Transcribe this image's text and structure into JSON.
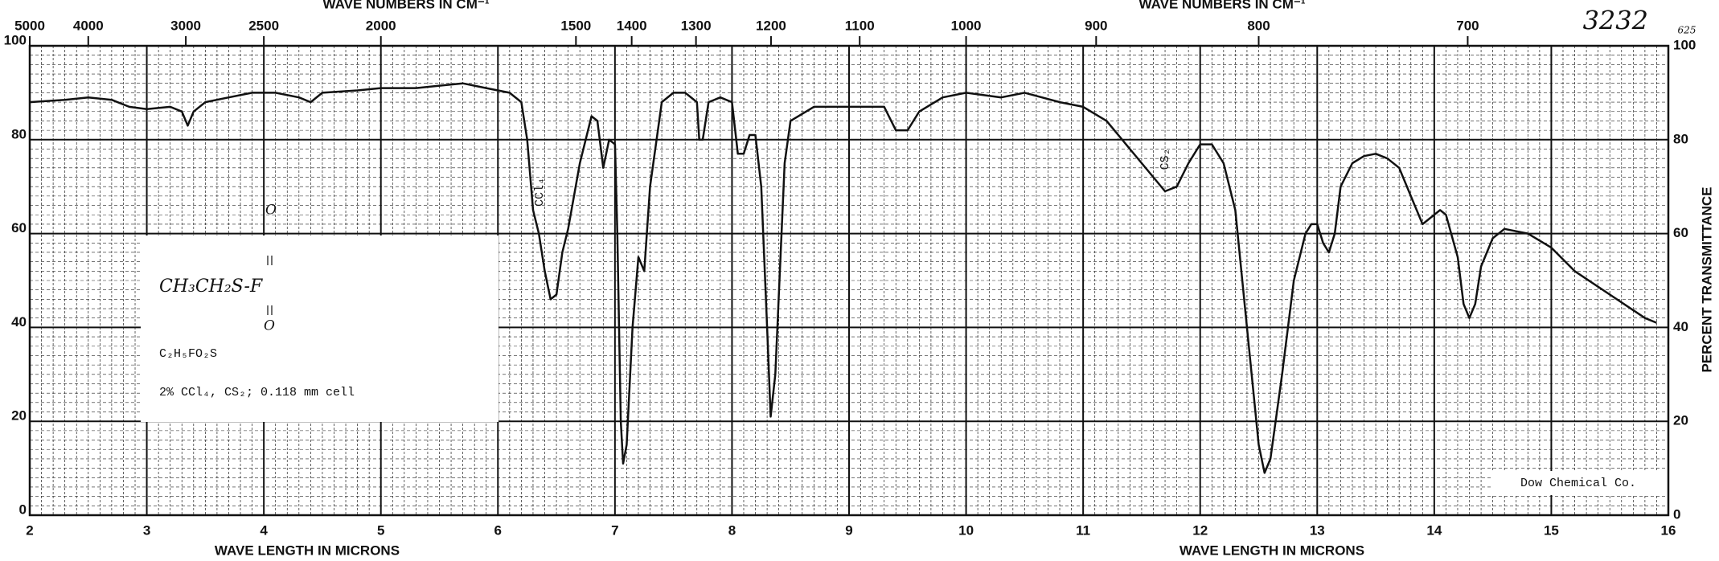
{
  "chart_data": {
    "type": "line",
    "x_label": "WAVE LENGTH IN MICRONS",
    "x2_label": "WAVE NUMBERS IN CM⁻¹",
    "y_label": "PERCENT TRANSMITTANCE",
    "catalog_number": "3232",
    "sub_number": "625",
    "source": "Dow Chemical Co.",
    "annotations": [
      "CCl₄",
      "CS₂"
    ],
    "sample": {
      "formula": "CH₃CH₂S-F",
      "oxygen": "O",
      "empirical": "C₂H₅FO₂S",
      "conditions": "2% CCl₄, CS₂; 0.118 mm cell"
    },
    "color": "#111111",
    "grid": true,
    "xlim": [
      2,
      16
    ],
    "xticks": [
      2,
      3,
      4,
      5,
      6,
      7,
      8,
      9,
      10,
      11,
      12,
      13,
      14,
      15,
      16
    ],
    "x2ticks": [
      5000,
      4000,
      3000,
      2500,
      2000,
      1500,
      1400,
      1300,
      1200,
      1100,
      1000,
      900,
      800,
      700
    ],
    "ylim": [
      0,
      100
    ],
    "yticks": [
      0,
      20,
      40,
      60,
      80,
      100
    ],
    "x": [
      2.0,
      2.3,
      2.5,
      2.7,
      2.85,
      3.0,
      3.2,
      3.3,
      3.35,
      3.4,
      3.5,
      3.7,
      3.9,
      4.1,
      4.3,
      4.4,
      4.5,
      4.8,
      5.0,
      5.3,
      5.5,
      5.7,
      5.9,
      6.1,
      6.2,
      6.25,
      6.3,
      6.35,
      6.4,
      6.45,
      6.5,
      6.55,
      6.6,
      6.7,
      6.8,
      6.85,
      6.9,
      6.95,
      7.0,
      7.02,
      7.05,
      7.07,
      7.1,
      7.15,
      7.2,
      7.25,
      7.3,
      7.4,
      7.5,
      7.6,
      7.7,
      7.72,
      7.75,
      7.8,
      7.9,
      8.0,
      8.05,
      8.1,
      8.15,
      8.2,
      8.25,
      8.3,
      8.33,
      8.37,
      8.45,
      8.5,
      8.7,
      9.0,
      9.3,
      9.4,
      9.5,
      9.6,
      9.8,
      10.0,
      10.3,
      10.5,
      10.8,
      11.0,
      11.2,
      11.4,
      11.6,
      11.7,
      11.8,
      11.9,
      12.0,
      12.1,
      12.2,
      12.3,
      12.4,
      12.5,
      12.55,
      12.6,
      12.7,
      12.8,
      12.9,
      12.95,
      13.0,
      13.05,
      13.1,
      13.15,
      13.2,
      13.3,
      13.4,
      13.5,
      13.6,
      13.7,
      13.8,
      13.9,
      14.0,
      14.05,
      14.1,
      14.2,
      14.25,
      14.3,
      14.35,
      14.4,
      14.5,
      14.6,
      14.8,
      15.0,
      15.2,
      15.5,
      15.8,
      15.9
    ],
    "values": [
      88,
      88.5,
      89,
      88.5,
      87,
      86.5,
      87,
      86,
      83,
      86,
      88,
      89,
      90,
      90,
      89,
      88,
      90,
      90.5,
      91,
      91,
      91.5,
      92,
      91,
      90,
      88,
      80,
      65,
      60,
      52,
      46,
      47,
      56,
      61,
      75,
      85,
      84,
      74,
      80,
      79,
      60,
      20,
      11,
      15,
      40,
      55,
      52,
      70,
      88,
      90,
      90,
      88,
      80,
      80,
      88,
      89,
      88,
      77,
      77,
      81,
      81,
      70,
      40,
      21,
      30,
      75,
      84,
      87,
      87,
      87,
      82,
      82,
      86,
      89,
      90,
      89,
      90,
      88,
      87,
      84,
      78,
      72,
      69,
      70,
      75,
      79,
      79,
      75,
      65,
      40,
      15,
      9,
      12,
      30,
      50,
      60,
      62,
      62,
      58,
      56,
      60,
      70,
      75,
      76.5,
      77,
      76,
      74,
      68,
      62,
      64,
      65,
      64,
      55,
      45,
      42,
      45,
      53,
      59,
      61,
      60,
      57,
      52,
      47,
      42,
      41
    ]
  }
}
